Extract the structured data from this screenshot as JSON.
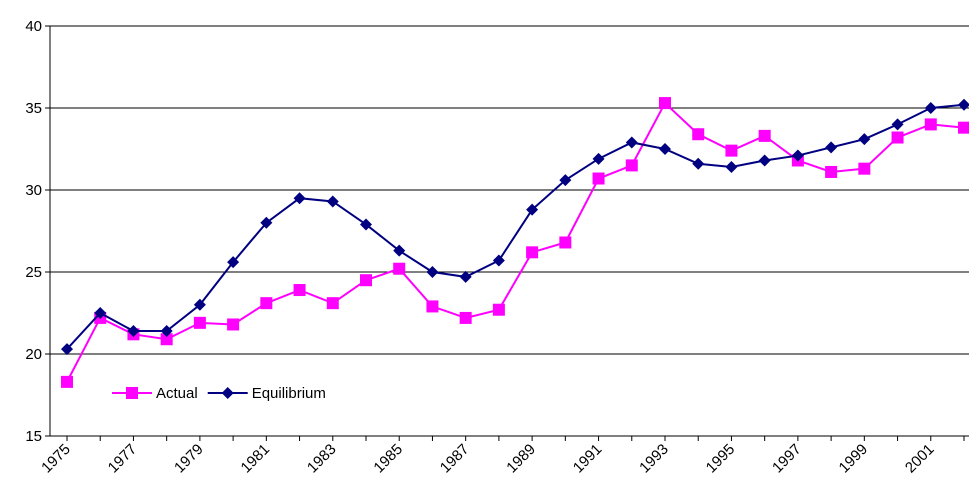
{
  "chart_data": {
    "type": "line",
    "categories": [
      "1975",
      null,
      "1977",
      null,
      "1979",
      null,
      "1981",
      null,
      "1983",
      null,
      "1985",
      null,
      "1987",
      null,
      "1989",
      null,
      "1991",
      null,
      "1993",
      null,
      "1995",
      null,
      "1997",
      null,
      "1999",
      null,
      "2001",
      null
    ],
    "series": [
      {
        "name": "Actual",
        "color": "#ff00ff",
        "marker": "square",
        "values": [
          18.3,
          22.2,
          21.2,
          20.9,
          21.9,
          21.8,
          23.1,
          23.9,
          23.1,
          24.5,
          25.2,
          22.9,
          22.2,
          22.7,
          26.2,
          26.8,
          30.7,
          31.5,
          35.3,
          33.4,
          32.4,
          33.3,
          31.8,
          31.1,
          31.3,
          33.2,
          34.0,
          33.8
        ]
      },
      {
        "name": "Equilibrium",
        "color": "#000080",
        "marker": "diamond",
        "values": [
          20.3,
          22.5,
          21.4,
          21.4,
          23.0,
          25.6,
          28.0,
          29.5,
          29.3,
          27.9,
          26.3,
          25.0,
          24.7,
          25.7,
          28.8,
          30.6,
          31.9,
          32.9,
          32.5,
          31.6,
          31.4,
          31.8,
          32.1,
          32.6,
          33.1,
          34.0,
          35.0,
          35.2
        ]
      }
    ],
    "ylim": [
      15,
      40
    ],
    "yticks": [
      15,
      20,
      25,
      30,
      35,
      40
    ],
    "grid": true
  }
}
